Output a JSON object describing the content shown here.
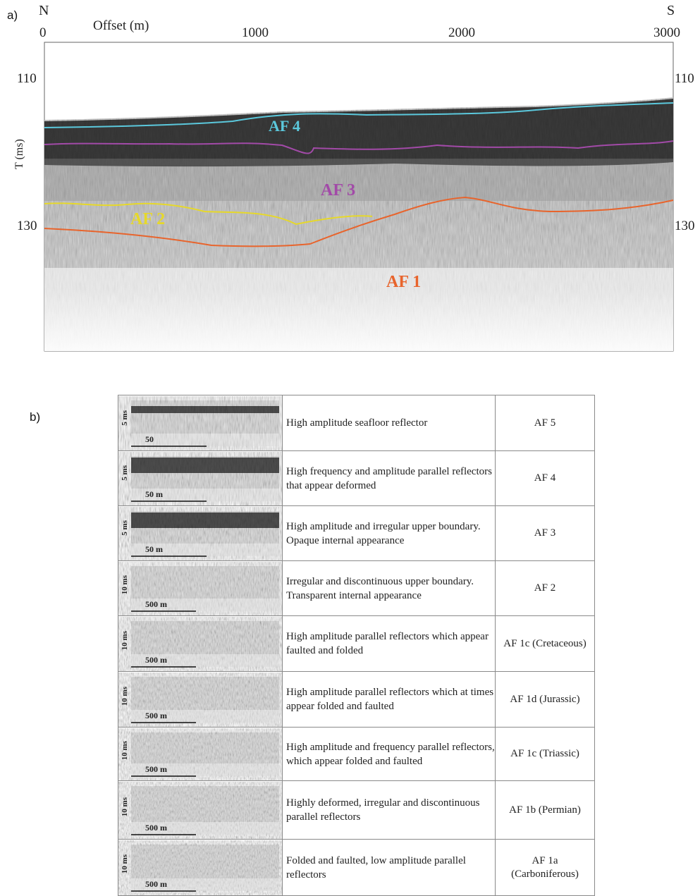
{
  "panel_a": {
    "tag": "a)",
    "north": "N",
    "south": "S",
    "x_axis_title": "Offset (m)",
    "x_ticks": [
      "0",
      "1000",
      "2000",
      "3000"
    ],
    "y_axis_title": "T (ms)",
    "y_ticks_left": [
      "110",
      "130"
    ],
    "y_ticks_right": [
      "110",
      "130"
    ],
    "horizons": [
      {
        "label": "AF 4",
        "color": "#5bc8dc"
      },
      {
        "label": "AF 3",
        "color": "#a24aa8"
      },
      {
        "label": "AF 2",
        "color": "#e6d82a"
      },
      {
        "label": "AF 1",
        "color": "#e8642c"
      }
    ]
  },
  "panel_b": {
    "tag": "b)",
    "rows": [
      {
        "vscale": "5 ms",
        "hscale": "50",
        "description": "High amplitude seafloor reflector",
        "unit": "AF 5"
      },
      {
        "vscale": "5 ms",
        "hscale": "50 m",
        "description": "High frequency and amplitude parallel reflectors that appear deformed",
        "unit": "AF 4"
      },
      {
        "vscale": "5 ms",
        "hscale": "50 m",
        "description": "High amplitude and irregular upper boundary. Opaque internal appearance",
        "unit": "AF 3"
      },
      {
        "vscale": "10 ms",
        "hscale": "500 m",
        "description": "Irregular and discontinuous upper boundary. Transparent internal appearance",
        "unit": "AF 2"
      },
      {
        "vscale": "10 ms",
        "hscale": "500 m",
        "description": "High amplitude parallel reflectors which appear faulted and folded",
        "unit": "AF 1c  (Cretaceous)"
      },
      {
        "vscale": "10 ms",
        "hscale": "500 m",
        "description": "High amplitude parallel reflectors which at times appear folded and faulted",
        "unit": "AF 1d  (Jurassic)"
      },
      {
        "vscale": "10 ms",
        "hscale": "500 m",
        "description": "High amplitude and frequency parallel reflectors, which appear folded and faulted",
        "unit": "AF 1c  (Triassic)"
      },
      {
        "vscale": "10 ms",
        "hscale": "500 m",
        "description": "Highly deformed, irregular and discontinuous parallel reflectors",
        "unit": "AF 1b  (Permian)"
      },
      {
        "vscale": "10 ms",
        "hscale": "500 m",
        "description": "Folded and faulted, low amplitude parallel reflectors",
        "unit": "AF 1a\n(Carboniferous)"
      }
    ]
  }
}
